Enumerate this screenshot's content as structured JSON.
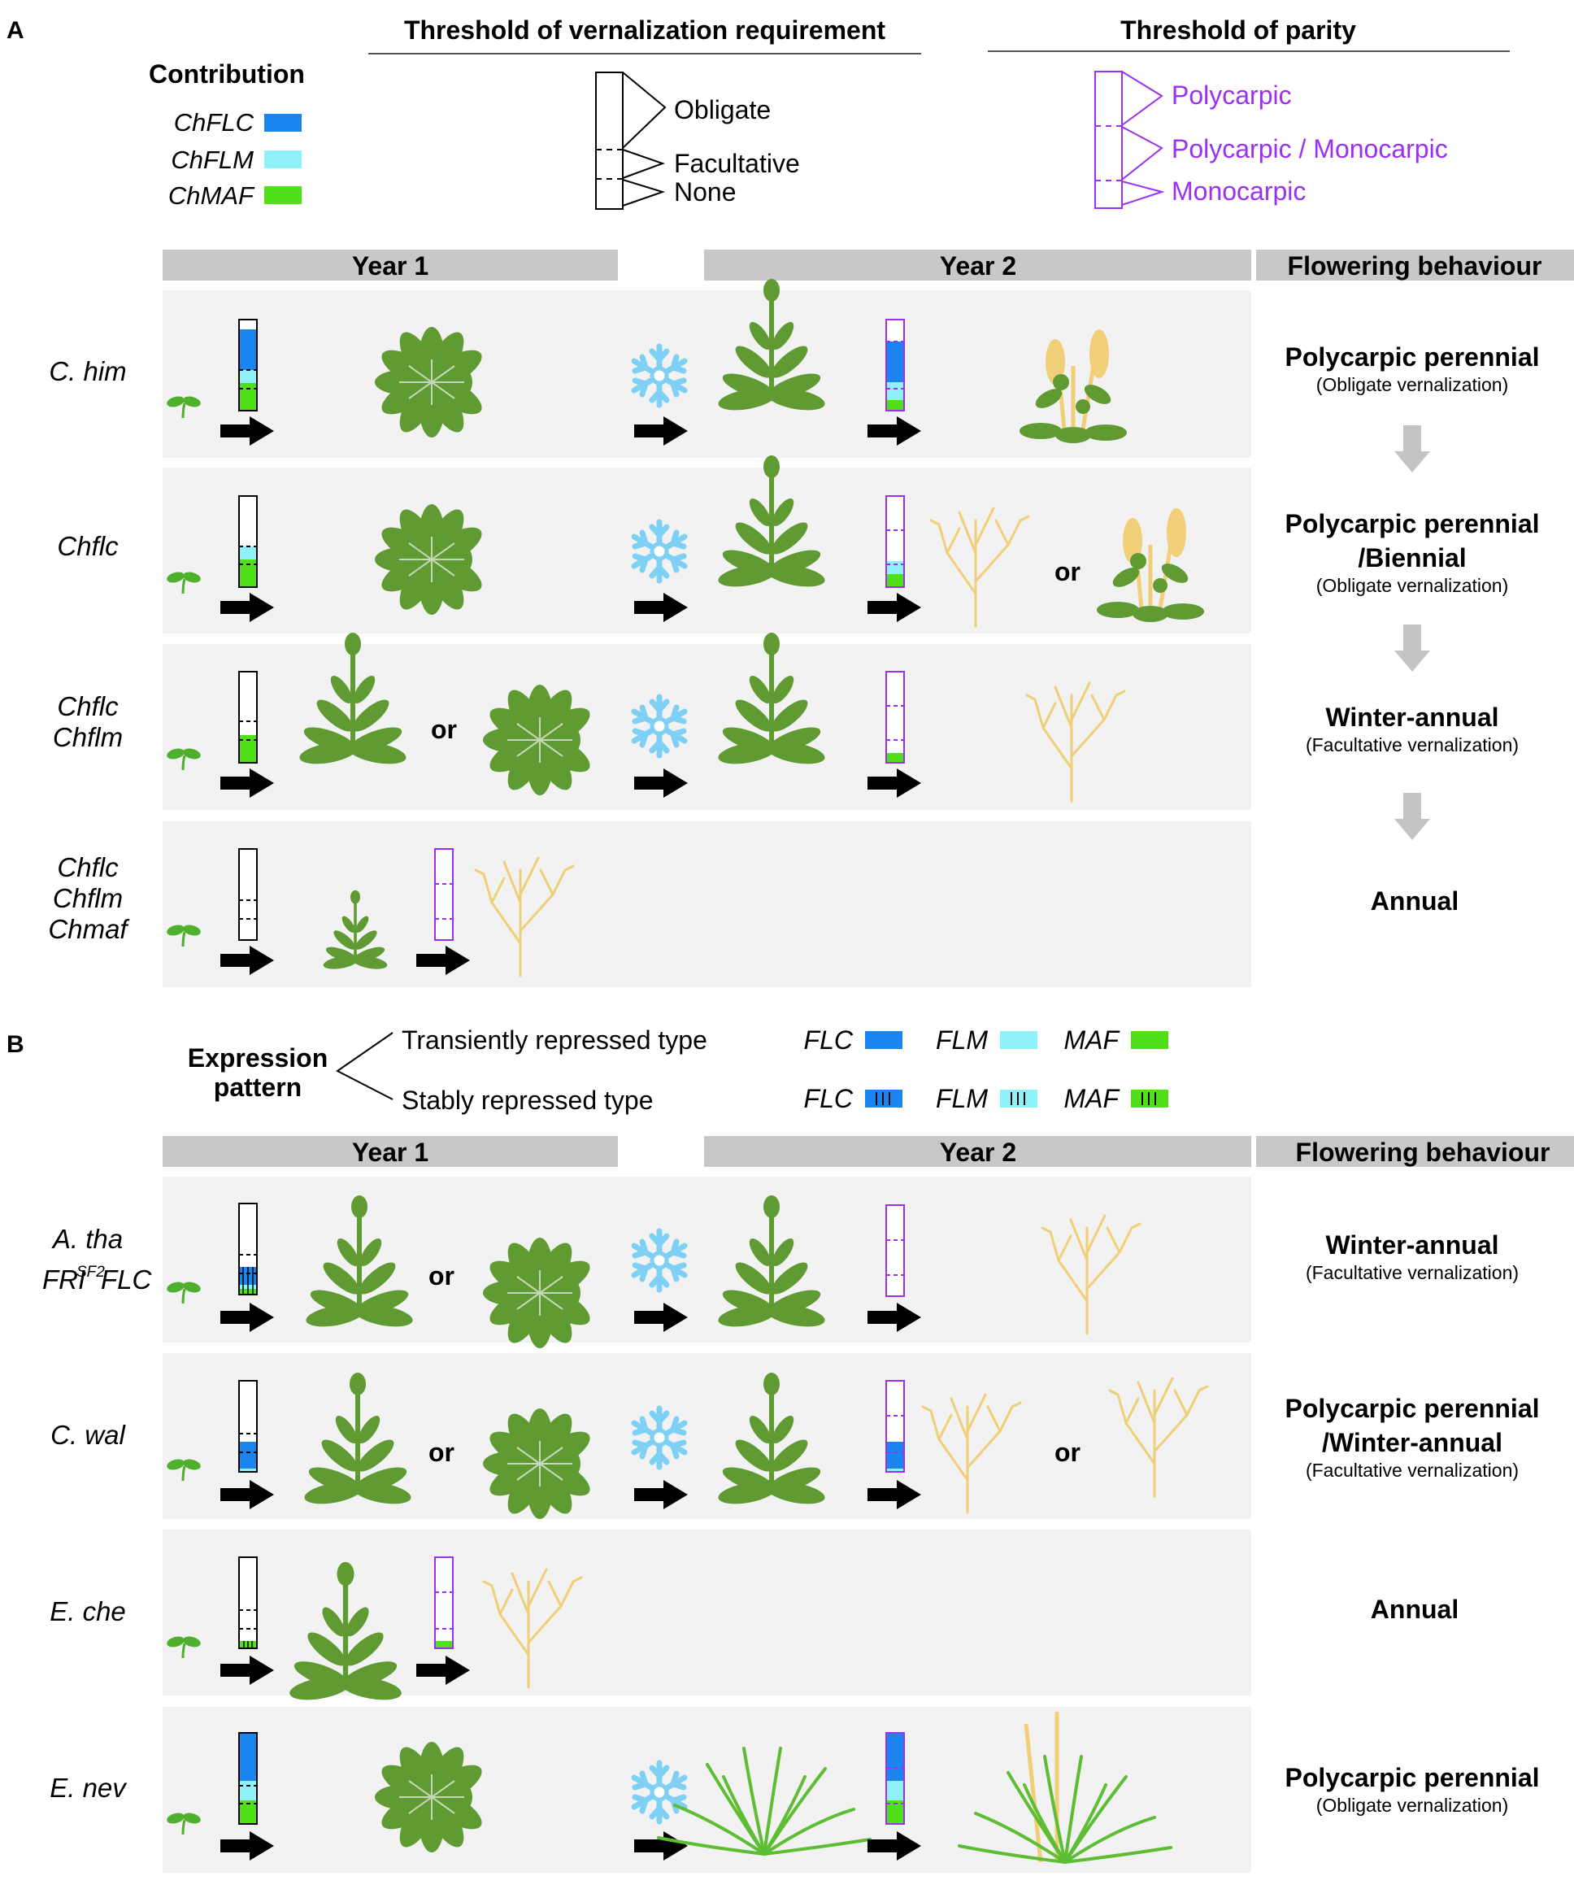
{
  "colors": {
    "flc": "#1a84ef",
    "flm": "#8ff2fb",
    "maf": "#4fe01a",
    "purple": "#9b30f0",
    "band": "#c8c8c8",
    "row_bg": "#f2f2f2",
    "plant_green": "#5f9b32",
    "plant_bright": "#5dbd33",
    "seed": "#f0cf78",
    "snow": "#7fd0f5",
    "down_arrow": "#c4c4c4"
  },
  "icons": [
    "seedling-icon",
    "snowflake-icon",
    "right-arrow-icon",
    "down-arrow-icon",
    "rosette-plant-icon",
    "flowering-plant-icon",
    "senesced-plant-icon"
  ],
  "panelA": {
    "letter": "A",
    "legend": {
      "title": "Contribution",
      "items": [
        {
          "label": "ChFLC",
          "color": "#1a84ef"
        },
        {
          "label": "ChFLM",
          "color": "#8ff2fb"
        },
        {
          "label": "ChMAF",
          "color": "#4fe01a"
        }
      ]
    },
    "vernalization": {
      "title": "Threshold of vernalization requirement",
      "levels": [
        "Obligate",
        "Facultative",
        "None"
      ]
    },
    "parity": {
      "title": "Threshold of parity",
      "levels": [
        "Polycarpic",
        "Polycarpic / Monocarpic",
        "Monocarpic"
      ]
    },
    "headers": {
      "year1": "Year 1",
      "year2": "Year 2",
      "behaviour": "Flowering behaviour"
    },
    "rows": [
      {
        "line1": "C. him",
        "line2": "",
        "line3": "",
        "or1": "",
        "or2": "",
        "behaviour1": "Polycarpic perennial",
        "behaviour2": "",
        "note": "(Obligate vernalization)"
      },
      {
        "line1": "Chflc",
        "line2": "",
        "line3": "",
        "or1": "",
        "or2": "or",
        "behaviour1": "Polycarpic perennial",
        "behaviour2": "/Biennial",
        "note": "(Obligate vernalization)"
      },
      {
        "line1": "Chflc",
        "line2": "Chflm",
        "line3": "",
        "or1": "or",
        "or2": "",
        "behaviour1": "Winter-annual",
        "behaviour2": "",
        "note": "(Facultative vernalization)"
      },
      {
        "line1": "Chflc",
        "line2": "Chflm",
        "line3": "Chmaf",
        "or1": "",
        "or2": "",
        "behaviour1": "Annual",
        "behaviour2": "",
        "note": ""
      }
    ]
  },
  "panelB": {
    "letter": "B",
    "expression": {
      "title_line1": "Expression",
      "title_line2": "pattern",
      "transient": "Transiently repressed type",
      "stable": "Stably repressed type"
    },
    "legend": {
      "transient": [
        {
          "label": "FLC",
          "color": "#1a84ef"
        },
        {
          "label": "FLM",
          "color": "#8ff2fb"
        },
        {
          "label": "MAF",
          "color": "#4fe01a"
        }
      ],
      "stable": [
        {
          "label": "FLC",
          "color": "#1a84ef"
        },
        {
          "label": "FLM",
          "color": "#8ff2fb"
        },
        {
          "label": "MAF",
          "color": "#4fe01a"
        }
      ]
    },
    "headers": {
      "year1": "Year 1",
      "year2": "Year 2",
      "behaviour": "Flowering behaviour"
    },
    "rows": [
      {
        "line1": "A. tha",
        "line2_main": "FRI",
        "line2_sup": "SF2",
        "line2_tail": " FLC",
        "or1": "or",
        "or2": "",
        "behaviour1": "Winter-annual",
        "behaviour2": "",
        "note": "(Facultative vernalization)"
      },
      {
        "line1": "C. wal",
        "line2_main": "",
        "line2_sup": "",
        "line2_tail": "",
        "or1": "or",
        "or2": "or",
        "behaviour1": "Polycarpic perennial",
        "behaviour2": "/Winter-annual",
        "note": "(Facultative vernalization)"
      },
      {
        "line1": "E. che",
        "line2_main": "",
        "line2_sup": "",
        "line2_tail": "",
        "or1": "",
        "or2": "",
        "behaviour1": "Annual",
        "behaviour2": "",
        "note": ""
      },
      {
        "line1": "E. nev",
        "line2_main": "",
        "line2_sup": "",
        "line2_tail": "",
        "or1": "",
        "or2": "",
        "behaviour1": "Polycarpic perennial",
        "behaviour2": "",
        "note": "(Obligate vernalization)"
      }
    ]
  }
}
